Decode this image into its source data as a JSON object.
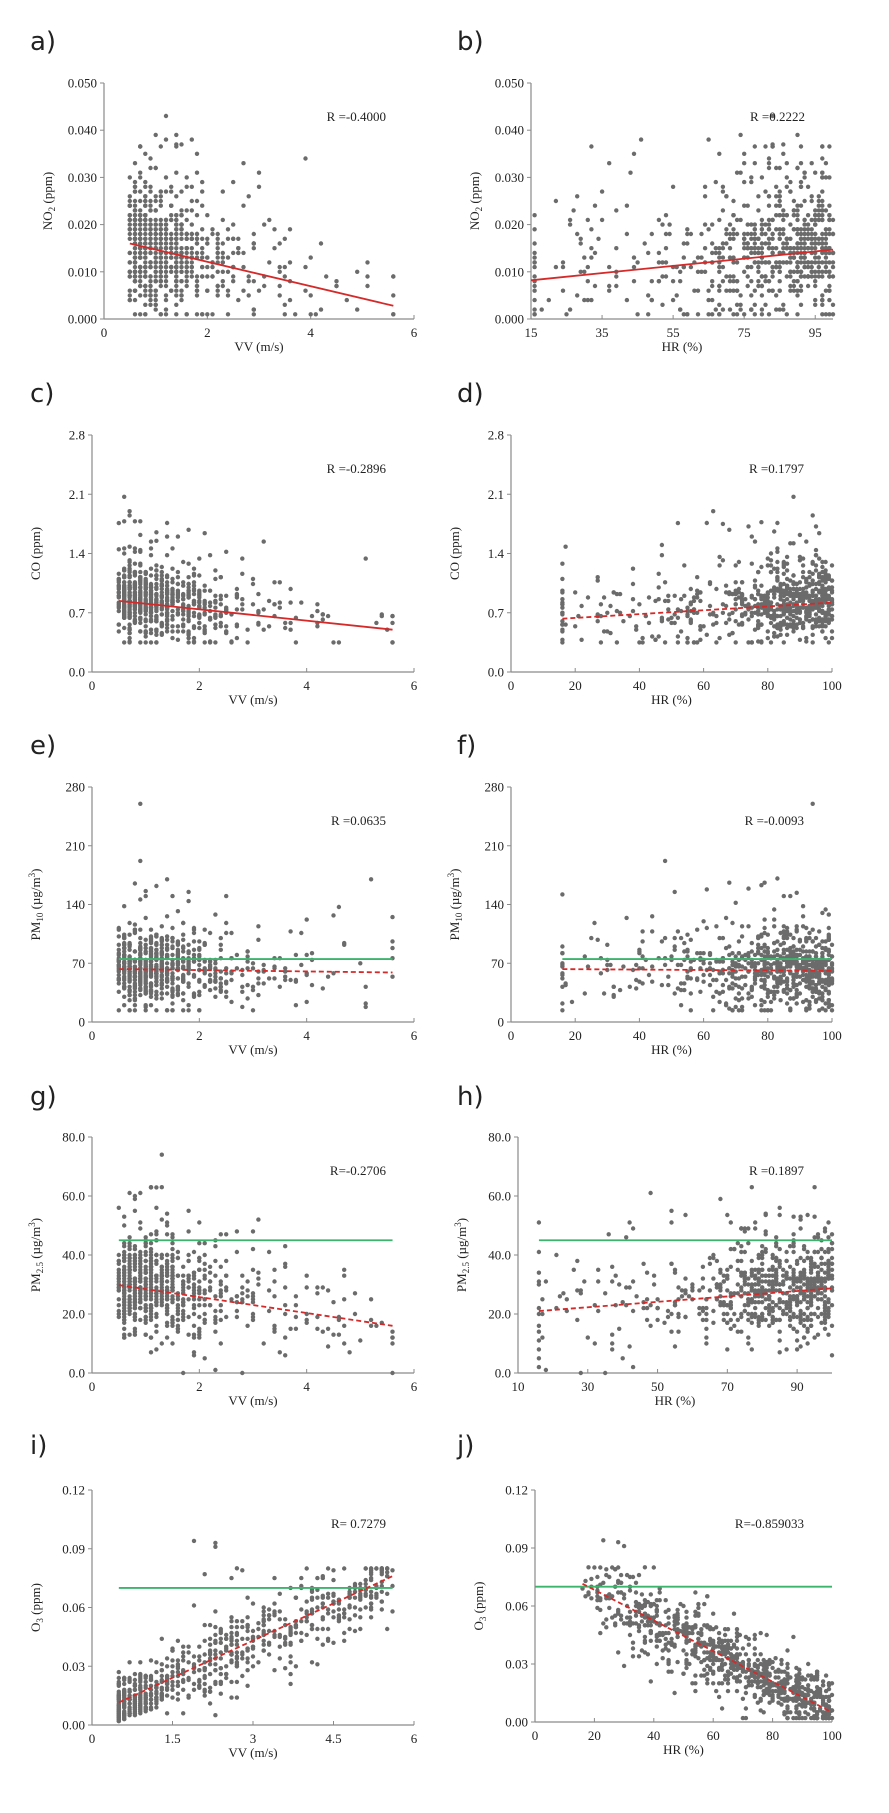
{
  "colors": {
    "points": "#6b6b6b",
    "trend": "#d42a2a",
    "limit": "#3bb56c",
    "axis": "#8a8a8a"
  },
  "chart_data": [
    {
      "id": "a",
      "letter": "a)",
      "type": "scatter",
      "ylabel": "NO2 (ppm)",
      "ylabel_main": "NO",
      "ylabel_sub": "2",
      "ylabel_sup": "",
      "ylabel_rest": " (ppm)",
      "xlabel": "VV (m/s)",
      "xlim": [
        0,
        6
      ],
      "ylim": [
        0,
        0.05
      ],
      "xticks": [
        0,
        2,
        4,
        6
      ],
      "xtick_labels": [
        "0",
        "2",
        "4",
        "6"
      ],
      "yticks": [
        0,
        0.01,
        0.02,
        0.03,
        0.04,
        0.05
      ],
      "ytick_labels": [
        "0.000",
        "0.010",
        "0.020",
        "0.030",
        "0.040",
        "0.050"
      ],
      "annotation": "R =-0.4000",
      "trend": {
        "x": [
          0.5,
          5.6
        ],
        "y": [
          0.016,
          0.0028
        ],
        "style": "solid"
      },
      "limit": null,
      "points_summary": {
        "x_range": [
          0.5,
          5.6
        ],
        "y_range": [
          0.001,
          0.043
        ],
        "n_approx": 700,
        "x_center": 1.2,
        "y_center": 0.011,
        "x_spread": 1.0,
        "y_spread": 0.006,
        "x_step": 0.1,
        "y_step": 0.001
      },
      "outliers": [
        [
          1.2,
          0.043
        ],
        [
          1.0,
          0.039
        ],
        [
          1.4,
          0.039
        ],
        [
          1.2,
          0.038
        ],
        [
          1.7,
          0.038
        ],
        [
          1.5,
          0.037
        ],
        [
          1.4,
          0.037
        ],
        [
          0.8,
          0.035
        ],
        [
          1.8,
          0.035
        ],
        [
          2.7,
          0.033
        ],
        [
          3.0,
          0.031
        ],
        [
          2.5,
          0.029
        ],
        [
          2.8,
          0.026
        ],
        [
          3.2,
          0.021
        ],
        [
          4.2,
          0.016
        ],
        [
          3.5,
          0.017
        ],
        [
          0.5,
          0.021
        ]
      ]
    },
    {
      "id": "b",
      "letter": "b)",
      "type": "scatter",
      "ylabel": "NO2 (ppm)",
      "ylabel_main": "NO",
      "ylabel_sub": "2",
      "ylabel_sup": "",
      "ylabel_rest": " (ppm)",
      "xlabel": "HR (%)",
      "xlim": [
        15,
        100
      ],
      "ylim": [
        0,
        0.05
      ],
      "xticks": [
        15,
        35,
        55,
        75,
        95
      ],
      "xtick_labels": [
        "15",
        "35",
        "55",
        "75",
        "95"
      ],
      "yticks": [
        0,
        0.01,
        0.02,
        0.03,
        0.04,
        0.05
      ],
      "ytick_labels": [
        "0.000",
        "0.010",
        "0.020",
        "0.030",
        "0.040",
        "0.050"
      ],
      "annotation": "R =0.2222",
      "trend": {
        "x": [
          15,
          100
        ],
        "y": [
          0.0082,
          0.0147
        ],
        "style": "solid"
      },
      "limit": null,
      "points_summary": {
        "x_range": [
          16,
          100
        ],
        "y_range": [
          0.001,
          0.043
        ],
        "n_approx": 700,
        "x_center": 70,
        "y_center": 0.011,
        "x_spread": 22,
        "y_spread": 0.007,
        "x_step": 1,
        "y_step": 0.001
      },
      "outliers": [
        [
          83,
          0.043
        ],
        [
          74,
          0.039
        ],
        [
          90,
          0.039
        ],
        [
          46,
          0.038
        ],
        [
          65,
          0.038
        ],
        [
          83,
          0.037
        ],
        [
          86,
          0.037
        ],
        [
          44,
          0.035
        ],
        [
          68,
          0.035
        ],
        [
          37,
          0.033
        ],
        [
          75,
          0.033
        ],
        [
          82,
          0.033
        ],
        [
          43,
          0.031
        ],
        [
          28,
          0.026
        ],
        [
          22,
          0.025
        ],
        [
          31,
          0.021
        ]
      ]
    },
    {
      "id": "c",
      "letter": "c)",
      "type": "scatter",
      "ylabel": "CO (ppm)",
      "ylabel_main": "CO (ppm)",
      "ylabel_sub": "",
      "ylabel_sup": "",
      "ylabel_rest": "",
      "xlabel": "VV (m/s)",
      "xlim": [
        0,
        6
      ],
      "ylim": [
        0,
        2.8
      ],
      "xticks": [
        0,
        2,
        4,
        6
      ],
      "xtick_labels": [
        "0",
        "2",
        "4",
        "6"
      ],
      "yticks": [
        0,
        0.7,
        1.4,
        2.1,
        2.8
      ],
      "ytick_labels": [
        "0.0",
        "0.7",
        "1.4",
        "2.1",
        "2.8"
      ],
      "annotation": "R =-0.2896",
      "trend": {
        "x": [
          0.5,
          5.6
        ],
        "y": [
          0.84,
          0.5
        ],
        "style": "solid"
      },
      "limit": null,
      "points_summary": {
        "x_range": [
          0.5,
          5.6
        ],
        "y_range": [
          0.35,
          2.07
        ],
        "n_approx": 700,
        "x_center": 1.3,
        "y_center": 0.68,
        "x_spread": 1.1,
        "y_spread": 0.2,
        "x_step": 0.1,
        "y_step": 0.02
      },
      "outliers": [
        [
          0.6,
          2.07
        ],
        [
          0.7,
          1.9
        ],
        [
          0.7,
          1.85
        ],
        [
          0.6,
          1.78
        ],
        [
          0.8,
          1.78
        ],
        [
          0.9,
          1.78
        ],
        [
          1.4,
          1.76
        ],
        [
          1.8,
          1.68
        ],
        [
          1.2,
          1.65
        ],
        [
          1.4,
          1.6
        ],
        [
          1.2,
          1.55
        ],
        [
          0.5,
          1.45
        ],
        [
          1.5,
          1.46
        ],
        [
          2.5,
          1.42
        ],
        [
          2.2,
          1.38
        ],
        [
          3.0,
          1.1
        ]
      ]
    },
    {
      "id": "d",
      "letter": "d)",
      "type": "scatter",
      "ylabel": "CO (ppm)",
      "ylabel_main": "CO (ppm)",
      "ylabel_sub": "",
      "ylabel_sup": "",
      "ylabel_rest": "",
      "xlabel": "HR (%)",
      "xlim": [
        0,
        100
      ],
      "ylim": [
        0,
        2.8
      ],
      "xticks": [
        0,
        20,
        40,
        60,
        80,
        100
      ],
      "xtick_labels": [
        "0",
        "20",
        "40",
        "60",
        "80",
        "100"
      ],
      "yticks": [
        0,
        0.7,
        1.4,
        2.1,
        2.8
      ],
      "ytick_labels": [
        "0.0",
        "0.7",
        "1.4",
        "2.1",
        "2.8"
      ],
      "annotation": "R =0.1797",
      "trend": {
        "x": [
          16,
          100
        ],
        "y": [
          0.63,
          0.82
        ],
        "style": "dashed"
      },
      "limit": null,
      "points_summary": {
        "x_range": [
          16,
          100
        ],
        "y_range": [
          0.35,
          2.07
        ],
        "n_approx": 700,
        "x_center": 72,
        "y_center": 0.68,
        "x_spread": 22,
        "y_spread": 0.22,
        "x_step": 1,
        "y_step": 0.02
      },
      "outliers": [
        [
          88,
          2.07
        ],
        [
          63,
          1.9
        ],
        [
          94,
          1.85
        ],
        [
          61,
          1.76
        ],
        [
          66,
          1.75
        ],
        [
          78,
          1.77
        ],
        [
          83,
          1.76
        ],
        [
          68,
          1.68
        ],
        [
          74,
          1.72
        ],
        [
          90,
          1.62
        ],
        [
          47,
          1.38
        ],
        [
          54,
          1.26
        ]
      ]
    },
    {
      "id": "e",
      "letter": "e)",
      "type": "scatter",
      "ylabel": "PM10 (µg/m3)",
      "ylabel_main": "PM",
      "ylabel_sub": "10",
      "ylabel_sup": "3",
      "ylabel_rest": " (µg/m",
      "xlabel": "VV (m/s)",
      "xlim": [
        0,
        6
      ],
      "ylim": [
        0,
        280
      ],
      "xticks": [
        0,
        2,
        4,
        6
      ],
      "xtick_labels": [
        "0",
        "2",
        "4",
        "6"
      ],
      "yticks": [
        0,
        70,
        140,
        210,
        280
      ],
      "ytick_labels": [
        "0",
        "70",
        "140",
        "210",
        "280"
      ],
      "annotation": "R =0.0635",
      "trend": {
        "x": [
          0.5,
          5.6
        ],
        "y": [
          63,
          59
        ],
        "style": "dashed"
      },
      "limit": {
        "x": [
          0.5,
          5.6
        ],
        "y": 75
      },
      "points_summary": {
        "x_range": [
          0.5,
          5.6
        ],
        "y_range": [
          14,
          260
        ],
        "n_approx": 700,
        "x_center": 1.3,
        "y_center": 55,
        "x_spread": 1.1,
        "y_spread": 20,
        "x_step": 0.1,
        "y_step": 2
      },
      "outliers": [
        [
          0.9,
          260
        ],
        [
          0.9,
          192
        ],
        [
          1.4,
          170
        ],
        [
          0.8,
          165
        ],
        [
          1.8,
          155
        ],
        [
          2.5,
          150
        ],
        [
          0.6,
          138
        ],
        [
          4.6,
          137
        ],
        [
          5.6,
          125
        ],
        [
          4.5,
          127
        ]
      ]
    },
    {
      "id": "f",
      "letter": "f)",
      "type": "scatter",
      "ylabel": "PM10 (µg/m3)",
      "ylabel_main": "PM",
      "ylabel_sub": "10",
      "ylabel_sup": "3",
      "ylabel_rest": " (µg/m",
      "xlabel": "HR (%)",
      "xlim": [
        0,
        100
      ],
      "ylim": [
        0,
        280
      ],
      "xticks": [
        0,
        20,
        40,
        60,
        80,
        100
      ],
      "xtick_labels": [
        "0",
        "20",
        "40",
        "60",
        "80",
        "100"
      ],
      "yticks": [
        0,
        70,
        140,
        210,
        280
      ],
      "ytick_labels": [
        "0",
        "70",
        "140",
        "210",
        "280"
      ],
      "annotation": "R =-0.0093",
      "trend": {
        "x": [
          16,
          100
        ],
        "y": [
          63,
          61
        ],
        "style": "dashed"
      },
      "limit": {
        "x": [
          16,
          100
        ],
        "y": 75
      },
      "points_summary": {
        "x_range": [
          16,
          100
        ],
        "y_range": [
          14,
          260
        ],
        "n_approx": 700,
        "x_center": 72,
        "y_center": 55,
        "x_spread": 22,
        "y_spread": 22,
        "x_step": 1,
        "y_step": 2
      },
      "outliers": [
        [
          94,
          260
        ],
        [
          48,
          192
        ],
        [
          83,
          171
        ],
        [
          68,
          166
        ],
        [
          78,
          163
        ],
        [
          61,
          158
        ],
        [
          74,
          159
        ],
        [
          51,
          155
        ],
        [
          85,
          150
        ],
        [
          87,
          150
        ]
      ]
    },
    {
      "id": "g",
      "letter": "g)",
      "type": "scatter",
      "ylabel": "PM2.5 (µg/m3)",
      "ylabel_main": "PM",
      "ylabel_sub": "2.5",
      "ylabel_sup": "3",
      "ylabel_rest": " (µg/m",
      "xlabel": "VV (m/s)",
      "xlim": [
        0,
        6
      ],
      "ylim": [
        0,
        80
      ],
      "xticks": [
        0,
        2,
        4,
        6
      ],
      "xtick_labels": [
        "0",
        "2",
        "4",
        "6"
      ],
      "yticks": [
        0,
        20,
        40,
        60,
        80
      ],
      "ytick_labels": [
        "0.0",
        "20.0",
        "40.0",
        "60.0",
        "80.0"
      ],
      "annotation": "R=-0.2706",
      "trend": {
        "x": [
          0.5,
          5.6
        ],
        "y": [
          29.8,
          16
        ],
        "style": "dashed"
      },
      "limit": {
        "x": [
          0.5,
          5.6
        ],
        "y": 45
      },
      "points_summary": {
        "x_range": [
          0.5,
          5.6
        ],
        "y_range": [
          0,
          74
        ],
        "n_approx": 700,
        "x_center": 1.3,
        "y_center": 25,
        "x_spread": 1.1,
        "y_spread": 8,
        "x_step": 0.1,
        "y_step": 1
      },
      "outliers": [
        [
          1.3,
          74
        ],
        [
          1.1,
          63
        ],
        [
          1.3,
          63
        ],
        [
          0.9,
          61
        ],
        [
          0.8,
          59
        ],
        [
          1.2,
          56
        ],
        [
          1.8,
          55
        ],
        [
          0.6,
          53
        ],
        [
          2.0,
          51
        ],
        [
          3.0,
          48
        ],
        [
          2.5,
          47
        ],
        [
          1.7,
          0
        ],
        [
          2.8,
          0
        ]
      ]
    },
    {
      "id": "h",
      "letter": "h)",
      "type": "scatter",
      "ylabel": "PM2.5 (µg/m3)",
      "ylabel_main": "PM",
      "ylabel_sub": "2.5",
      "ylabel_sup": "3",
      "ylabel_rest": " (µg/m",
      "xlabel": "HR (%)",
      "xlim": [
        10,
        100
      ],
      "ylim": [
        0,
        80
      ],
      "xticks": [
        10,
        30,
        50,
        70,
        90
      ],
      "xtick_labels": [
        "10",
        "30",
        "50",
        "70",
        "90"
      ],
      "yticks": [
        0,
        20,
        40,
        60,
        80
      ],
      "ytick_labels": [
        "0.0",
        "20.0",
        "40.0",
        "60.0",
        "80.0"
      ],
      "annotation": "R =0.1897",
      "trend": {
        "x": [
          16,
          100
        ],
        "y": [
          21,
          28.7
        ],
        "style": "dashed"
      },
      "limit": {
        "x": [
          16,
          100
        ],
        "y": 45
      },
      "points_summary": {
        "x_range": [
          16,
          100
        ],
        "y_range": [
          0,
          63
        ],
        "n_approx": 700,
        "x_center": 72,
        "y_center": 24,
        "x_spread": 22,
        "y_spread": 8,
        "x_step": 1,
        "y_step": 1
      },
      "outliers": [
        [
          77,
          63
        ],
        [
          95,
          63
        ],
        [
          48,
          61
        ],
        [
          68,
          59
        ],
        [
          85,
          56
        ],
        [
          54,
          55
        ],
        [
          81,
          54
        ],
        [
          91,
          53
        ],
        [
          42,
          51
        ],
        [
          28,
          0
        ],
        [
          35,
          0
        ]
      ]
    },
    {
      "id": "i",
      "letter": "i)",
      "type": "scatter",
      "ylabel": "O3 (ppm)",
      "ylabel_main": "O",
      "ylabel_sub": "3",
      "ylabel_sup": "",
      "ylabel_rest": " (ppm)",
      "xlabel": "VV (m/s)",
      "xlim": [
        0,
        6
      ],
      "ylim": [
        0,
        0.12
      ],
      "xticks": [
        0,
        1.5,
        3,
        4.5,
        6
      ],
      "xtick_labels": [
        "0",
        "1.5",
        "3",
        "4.5",
        "6"
      ],
      "yticks": [
        0,
        0.03,
        0.06,
        0.09,
        0.12
      ],
      "ytick_labels": [
        "0.00",
        "0.03",
        "0.06",
        "0.09",
        "0.12"
      ],
      "annotation": "R= 0.7279",
      "trend": {
        "x": [
          0.5,
          5.6
        ],
        "y": [
          0.0115,
          0.076
        ],
        "style": "dashed"
      },
      "limit": {
        "x": [
          0.5,
          5.6
        ],
        "y": 0.07
      },
      "points_summary": {
        "x_range": [
          0.5,
          5.6
        ],
        "y_range": [
          0.001,
          0.094
        ],
        "n_approx": 700,
        "kind": "rising",
        "x_step": 0.1,
        "y_step": 0.001
      },
      "outliers": [
        [
          1.9,
          0.094
        ],
        [
          2.3,
          0.093
        ],
        [
          2.3,
          0.091
        ],
        [
          2.7,
          0.08
        ],
        [
          2.8,
          0.079
        ],
        [
          2.1,
          0.077
        ],
        [
          2.6,
          0.075
        ],
        [
          3.7,
          0.026
        ],
        [
          2.7,
          0.014
        ]
      ]
    },
    {
      "id": "j",
      "letter": "j)",
      "type": "scatter",
      "ylabel": "O3 (ppm)",
      "ylabel_main": "O",
      "ylabel_sub": "3",
      "ylabel_sup": "",
      "ylabel_rest": " (ppm)",
      "xlabel": "HR (%)",
      "xlim": [
        0,
        100
      ],
      "ylim": [
        0,
        0.12
      ],
      "xticks": [
        0,
        20,
        40,
        60,
        80,
        100
      ],
      "xtick_labels": [
        "0",
        "20",
        "40",
        "60",
        "80",
        "100"
      ],
      "yticks": [
        0,
        0.03,
        0.06,
        0.09,
        0.12
      ],
      "ytick_labels": [
        "0.00",
        "0.03",
        "0.06",
        "0.09",
        "0.12"
      ],
      "annotation": "R=-0.859033",
      "trend": {
        "x": [
          16,
          100
        ],
        "y": [
          0.0715,
          0.005
        ],
        "style": "dashed"
      },
      "limit": {
        "x": [
          0,
          100
        ],
        "y": 0.07
      },
      "points_summary": {
        "x_range": [
          16,
          100
        ],
        "y_range": [
          0.002,
          0.094
        ],
        "n_approx": 800,
        "kind": "falling",
        "x_step": 1,
        "y_step": 0.001
      },
      "outliers": [
        [
          23,
          0.094
        ],
        [
          28,
          0.093
        ],
        [
          30,
          0.091
        ],
        [
          18,
          0.08
        ],
        [
          37,
          0.08
        ],
        [
          24,
          0.079
        ],
        [
          22,
          0.046
        ],
        [
          39,
          0.021
        ],
        [
          47,
          0.015
        ]
      ]
    }
  ]
}
